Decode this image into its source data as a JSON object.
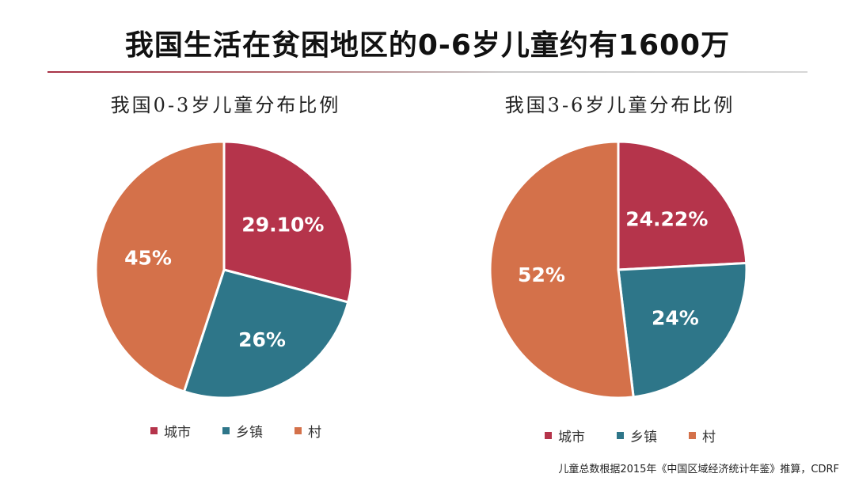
{
  "title": "我国生活在贫困地区的0-6岁儿童约有1600万",
  "source": "儿童总数根据2015年《中国区域经济统计年鉴》推算，CDRF",
  "colors": {
    "城市": "#b5344b",
    "乡镇": "#2e7689",
    "村": "#d4714a"
  },
  "chart_data": [
    {
      "type": "pie",
      "title": "我国0-3岁儿童分布比例",
      "categories": [
        "城市",
        "乡镇",
        "村"
      ],
      "values": [
        29.1,
        26,
        45
      ],
      "data_labels": [
        "29.10%",
        "26%",
        "45%"
      ],
      "legend_placement": "bottom"
    },
    {
      "type": "pie",
      "title": "我国3-6岁儿童分布比例",
      "categories": [
        "城市",
        "乡镇",
        "村"
      ],
      "values": [
        24.22,
        24,
        52
      ],
      "data_labels": [
        "24.22%",
        "24%",
        "52%"
      ],
      "legend_placement": "bottom"
    }
  ]
}
